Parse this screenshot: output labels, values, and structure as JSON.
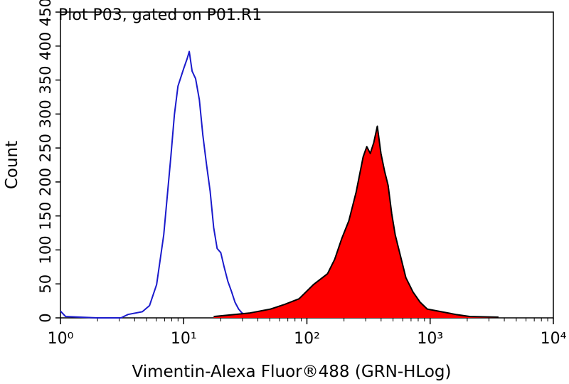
{
  "chart_data": {
    "type": "histogram",
    "title": "Plot P03, gated on P01.R1",
    "x_label": "Vimentin-Alexa Fluor®488 (GRN-HLog)",
    "y_label": "Count",
    "xscale": "log",
    "xlim": [
      1,
      10000
    ],
    "xticks": [
      {
        "value": 1,
        "label": "10⁰"
      },
      {
        "value": 10,
        "label": "10¹"
      },
      {
        "value": 100,
        "label": "10²"
      },
      {
        "value": 1000,
        "label": "10³"
      },
      {
        "value": 10000,
        "label": "10⁴"
      }
    ],
    "ylim": [
      0,
      450
    ],
    "yticks": [
      0,
      50,
      100,
      150,
      200,
      250,
      300,
      350,
      400,
      450
    ],
    "series": [
      {
        "color": "#1a1acc",
        "x": [
          1,
          1.1,
          2,
          3.1,
          3.54,
          4.62,
          5.28,
          6.03,
          6.89,
          7.87,
          8.41,
          8.99,
          10,
          10.7,
          11.1,
          11.7,
          12.5,
          13.4,
          14.3,
          15.3,
          16.4,
          17.5,
          18.7,
          20,
          21.3,
          22.8,
          24.4,
          26.1,
          27.9,
          29.8,
          34,
          38.9
        ],
        "values": [
          10,
          2,
          0,
          0,
          5,
          9,
          18,
          49,
          122,
          237,
          299,
          341,
          367,
          382,
          392,
          363,
          352,
          321,
          269,
          227,
          186,
          133,
          102,
          96,
          75,
          54,
          39,
          23,
          13,
          7,
          4,
          2
        ]
      },
      {
        "color": "#000000",
        "fill": "#ff0000",
        "x": [
          17.5,
          34,
          50.7,
          66.2,
          86.3,
          113,
          147,
          168,
          192,
          219,
          251,
          286,
          306,
          327,
          349,
          373,
          399,
          427,
          456,
          488,
          521,
          557,
          636,
          726,
          830,
          948,
          1236,
          1614,
          2109,
          3589
        ],
        "values": [
          2,
          7,
          13,
          20,
          28,
          49,
          65,
          86,
          117,
          143,
          185,
          237,
          252,
          242,
          258,
          282,
          242,
          216,
          195,
          153,
          122,
          101,
          59,
          38,
          23,
          13,
          9,
          5,
          2,
          1
        ]
      }
    ]
  }
}
